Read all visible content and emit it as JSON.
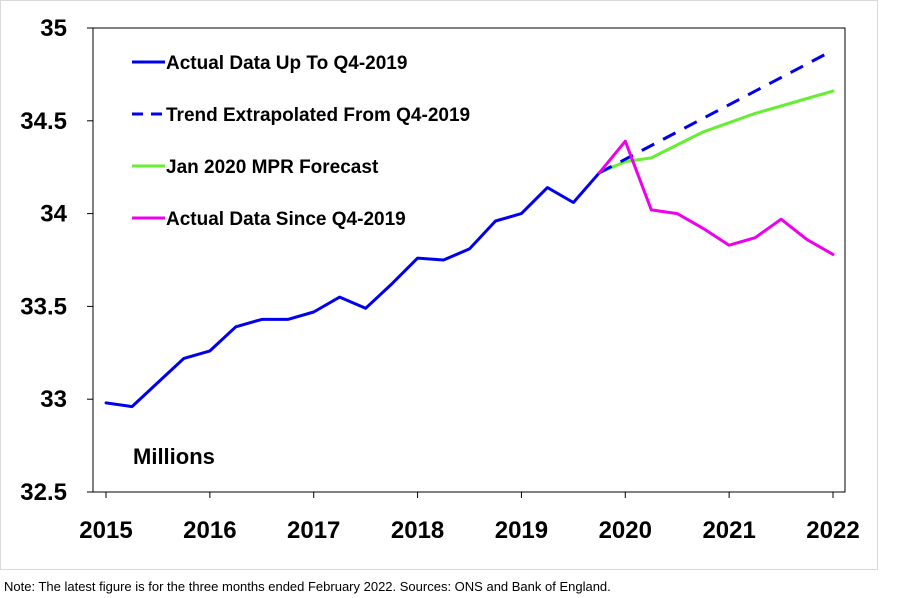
{
  "chart_data": {
    "type": "line",
    "title": "",
    "xlabel": "",
    "ylabel": "",
    "units_label": "Millions",
    "xlim": [
      2015,
      2022
    ],
    "ylim": [
      32.5,
      35
    ],
    "x_ticks": [
      "2015",
      "2016",
      "2017",
      "2018",
      "2019",
      "2020",
      "2021",
      "2022"
    ],
    "y_ticks": [
      "32.5",
      "33",
      "33.5",
      "34",
      "34.5",
      "35"
    ],
    "grid": false,
    "legend_position": "top-left",
    "series": [
      {
        "name": "Actual Data Up To Q4-2019",
        "color": "#0000ee",
        "style": "solid",
        "x": [
          2015.0,
          2015.25,
          2015.5,
          2015.75,
          2016.0,
          2016.25,
          2016.5,
          2016.75,
          2017.0,
          2017.25,
          2017.5,
          2017.75,
          2018.0,
          2018.25,
          2018.5,
          2018.75,
          2019.0,
          2019.25,
          2019.5,
          2019.75
        ],
        "y": [
          32.98,
          32.96,
          33.09,
          33.22,
          33.26,
          33.39,
          33.43,
          33.43,
          33.47,
          33.55,
          33.49,
          33.62,
          33.76,
          33.75,
          33.81,
          33.96,
          34.0,
          34.14,
          34.06,
          34.22
        ]
      },
      {
        "name": "Trend Extrapolated From Q4-2019",
        "color": "#0000ee",
        "style": "dashed",
        "x": [
          2019.75,
          2022.0
        ],
        "y": [
          34.22,
          34.88
        ]
      },
      {
        "name": "Jan 2020 MPR Forecast",
        "color": "#66ee33",
        "style": "solid",
        "x": [
          2019.75,
          2020.0,
          2020.25,
          2020.5,
          2020.75,
          2021.0,
          2021.25,
          2021.5,
          2021.75,
          2022.0
        ],
        "y": [
          34.22,
          34.28,
          34.3,
          34.37,
          34.44,
          34.49,
          34.54,
          34.58,
          34.62,
          34.66
        ]
      },
      {
        "name": "Actual Data Since Q4-2019",
        "color": "#ee00ee",
        "style": "solid",
        "x": [
          2019.75,
          2020.0,
          2020.25,
          2020.5,
          2020.75,
          2021.0,
          2021.25,
          2021.5,
          2021.75,
          2022.0
        ],
        "y": [
          34.22,
          34.39,
          34.02,
          34.0,
          33.92,
          33.83,
          33.87,
          33.97,
          33.86,
          33.78
        ]
      }
    ]
  },
  "footnote": "Note: The latest figure is for the three months ended February 2022. Sources: ONS and Bank of England."
}
